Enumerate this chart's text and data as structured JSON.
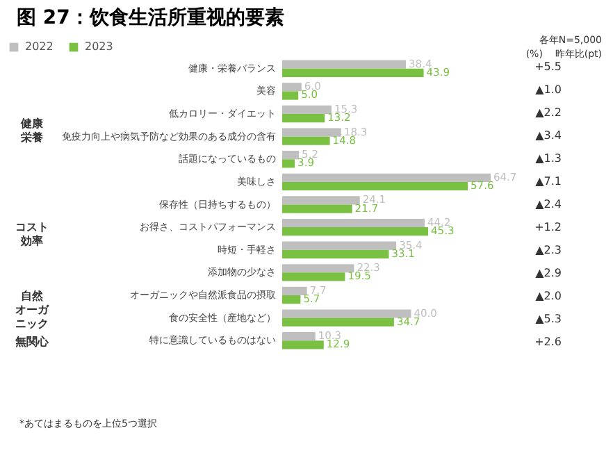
{
  "chart_data": {
    "type": "bar",
    "orientation": "horizontal",
    "title": "图 27：饮食生活所重视的要素",
    "categories": [
      "健康・栄養バランス",
      "美容",
      "低カロリー・ダイエット",
      "免疫力向上や病気予防など効果のある成分の含有",
      "話題になっているもの",
      "美味しさ",
      "保存性（日持ちするもの）",
      "お得さ、コストパフォーマンス",
      "時短・手軽さ",
      "添加物の少なさ",
      "オーガニックや自然派食品の摂取",
      "食の安全性（産地など）",
      "特に意識しているものはない"
    ],
    "series": [
      {
        "name": "2022",
        "color": "#bfbfbf",
        "values": [
          38.4,
          6.0,
          15.3,
          18.3,
          5.2,
          64.7,
          24.1,
          44.2,
          35.4,
          22.3,
          7.7,
          40.0,
          10.3
        ],
        "value_labels": [
          "38.4",
          "6.0",
          "15.3",
          "18.3",
          "5.2",
          "64.7",
          "24.1",
          "44.2",
          "35.4",
          "22.3",
          "7.7",
          "40.0",
          "10.3"
        ]
      },
      {
        "name": "2023",
        "color": "#7ac143",
        "values": [
          43.9,
          5.0,
          13.2,
          14.8,
          3.9,
          57.6,
          21.7,
          45.3,
          33.1,
          19.5,
          5.7,
          34.7,
          12.9
        ],
        "value_labels": [
          "43.9",
          "5.0",
          "13.2",
          "14.8",
          "3.9",
          "57.6",
          "21.7",
          "45.3",
          "33.1",
          "19.5",
          "5.7",
          "34.7",
          "12.9"
        ]
      }
    ],
    "legend": "top left",
    "annotations": [
      "各年N=5,000",
      "(%)",
      "昨年比(pt)",
      "*あてはまるものを上位5つ選択",
      "健康栄養",
      "コスト効率",
      "自然オーガニック",
      "無関心",
      "+5.5",
      "▲1.0",
      "▲2.2",
      "▲3.4",
      "▲1.3",
      "▲7.1",
      "▲2.4",
      "+1.2",
      "▲2.3",
      "▲2.9",
      "▲2.0",
      "▲5.3",
      "+2.6"
    ]
  }
}
